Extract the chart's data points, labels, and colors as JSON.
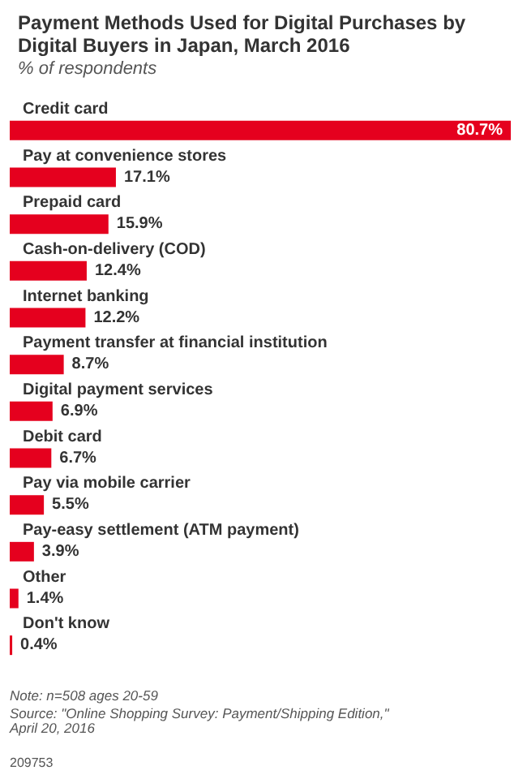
{
  "chart_data": {
    "type": "bar",
    "orientation": "horizontal",
    "tick_labels": "y",
    "title": "Payment Methods Used for Digital Purchases by Digital Buyers in Japan, March 2016",
    "subtitle": "% of respondents",
    "categories": [
      "Credit card",
      "Pay at convenience stores",
      "Prepaid card",
      "Cash-on-delivery (COD)",
      "Internet banking",
      "Payment transfer at financial institution",
      "Digital payment services",
      "Debit card",
      "Pay via mobile carrier",
      "Pay-easy settlement (ATM payment)",
      "Other",
      "Don't know"
    ],
    "series": [
      {
        "color": "#e5001e",
        "values": [
          80.7,
          17.1,
          15.9,
          12.4,
          12.2,
          8.7,
          6.9,
          6.7,
          5.5,
          3.9,
          1.4,
          0.4
        ],
        "value_labels": [
          "80.7%",
          "17.1%",
          "15.9%",
          "12.4%",
          "12.2%",
          "8.7%",
          "6.9%",
          "6.7%",
          "5.5%",
          "3.9%",
          "1.4%",
          "0.4%"
        ]
      }
    ],
    "annotations": [
      "Note: n=508 ages 20-59",
      "Source: \"Online Shopping Survey: Payment/Shipping Edition,\" April 20, 2016",
      "209753"
    ]
  }
}
